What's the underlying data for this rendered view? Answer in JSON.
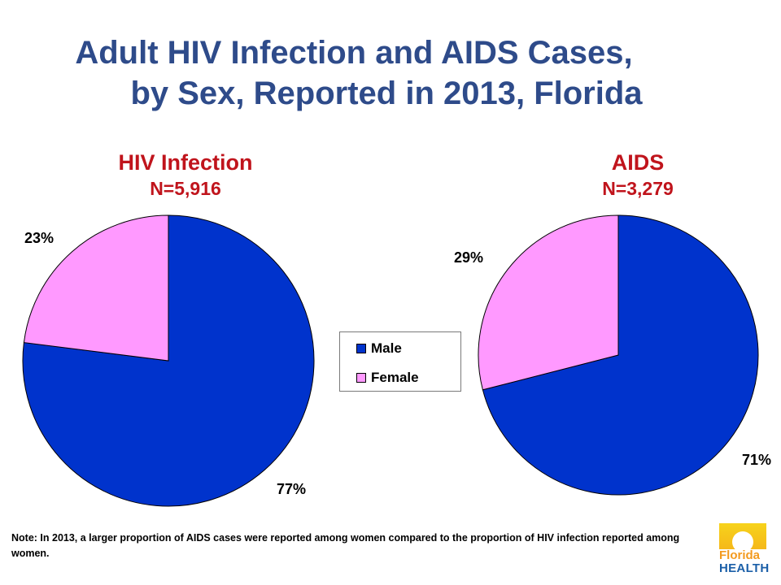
{
  "title": {
    "line1": "Adult HIV Infection and AIDS Cases,",
    "line2": "by Sex, Reported in 2013, Florida"
  },
  "colors": {
    "title": "#2e4b8a",
    "subtitle": "#c0141c",
    "male": "#0033cc",
    "female": "#ff99ff"
  },
  "chart_data": [
    {
      "type": "pie",
      "title": "HIV Infection",
      "subtitle": "N=5,916",
      "slices": [
        {
          "label": "Male",
          "value": 77,
          "display": "77%"
        },
        {
          "label": "Female",
          "value": 23,
          "display": "23%"
        }
      ]
    },
    {
      "type": "pie",
      "title": "AIDS",
      "subtitle": "N=3,279",
      "slices": [
        {
          "label": "Male",
          "value": 71,
          "display": "71%"
        },
        {
          "label": "Female",
          "value": 29,
          "display": "29%"
        }
      ]
    }
  ],
  "legend": {
    "placement": "center",
    "items": [
      {
        "label": "Male",
        "color": "#0033cc"
      },
      {
        "label": "Female",
        "color": "#ff99ff"
      }
    ]
  },
  "note": "Note:  In 2013, a larger proportion of AIDS cases were reported among women compared to the proportion of HIV infection reported among women.",
  "logo": {
    "word1": "Florida",
    "word2": "HEALTH"
  }
}
